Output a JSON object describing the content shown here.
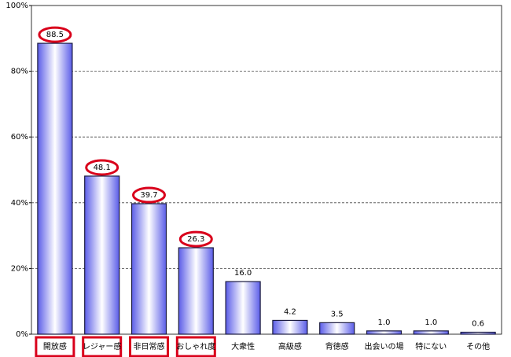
{
  "chart_data": {
    "type": "bar",
    "categories": [
      "開放感",
      "レジャー感",
      "非日常感",
      "おしゃれ度",
      "大衆性",
      "高級感",
      "背徳感",
      "出会いの場",
      "特にない",
      "その他"
    ],
    "values": [
      88.5,
      48.1,
      39.7,
      26.3,
      16.0,
      4.2,
      3.5,
      1.0,
      1.0,
      0.6
    ],
    "value_labels": [
      "88.5",
      "48.1",
      "39.7",
      "26.3",
      "16.0",
      "4.2",
      "3.5",
      "1.0",
      "1.0",
      "0.6"
    ],
    "color": "#6a6cf0",
    "ylim": [
      0,
      100
    ],
    "yticks": [
      {
        "value": 0,
        "label": "0%"
      },
      {
        "value": 20,
        "label": "20%"
      },
      {
        "value": 40,
        "label": "40%"
      },
      {
        "value": 60,
        "label": "60%"
      },
      {
        "value": 80,
        "label": "80%"
      },
      {
        "value": 100,
        "label": "100%"
      }
    ],
    "grid": true,
    "highlight_color": "#d9001b",
    "highlighted_indices": [
      0,
      1,
      2,
      3
    ]
  }
}
